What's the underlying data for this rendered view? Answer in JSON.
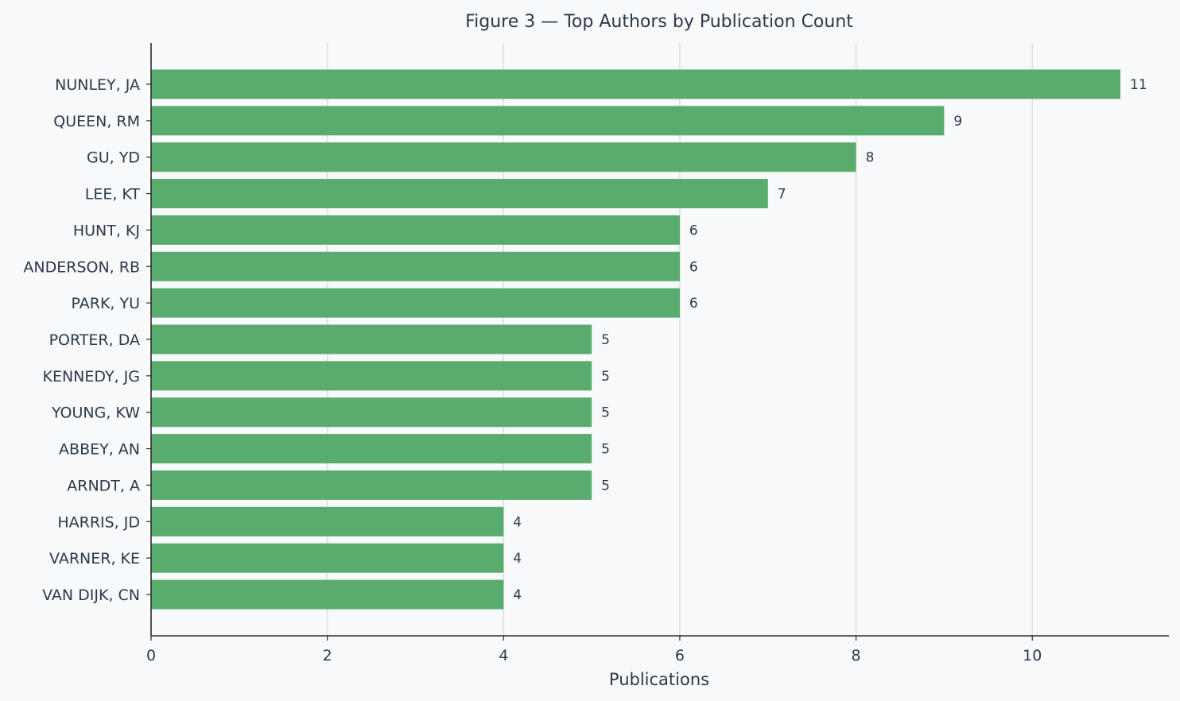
{
  "chart_data": {
    "type": "bar",
    "orientation": "horizontal",
    "title": "Figure 3 — Top Authors by Publication Count",
    "xlabel": "Publications",
    "ylabel": "",
    "categories": [
      "NUNLEY, JA",
      "QUEEN, RM",
      "GU, YD",
      "LEE, KT",
      "HUNT, KJ",
      "ANDERSON, RB",
      "PARK, YU",
      "PORTER, DA",
      "KENNEDY, JG",
      "YOUNG, KW",
      "ABBEY, AN",
      "ARNDT, A",
      "HARRIS, JD",
      "VARNER, KE",
      "VAN DIJK, CN"
    ],
    "values": [
      11,
      9,
      8,
      7,
      6,
      6,
      6,
      5,
      5,
      5,
      5,
      5,
      4,
      4,
      4
    ],
    "xlim": [
      0,
      11.55
    ],
    "xticks": [
      0,
      2,
      4,
      6,
      8,
      10
    ],
    "grid": "vertical",
    "data_labels": true,
    "bar_color": "#5aac6e",
    "grid_color": "#dcdfe2",
    "axis_color": "#2b2b2b",
    "text_color": "#2b3a4a"
  }
}
